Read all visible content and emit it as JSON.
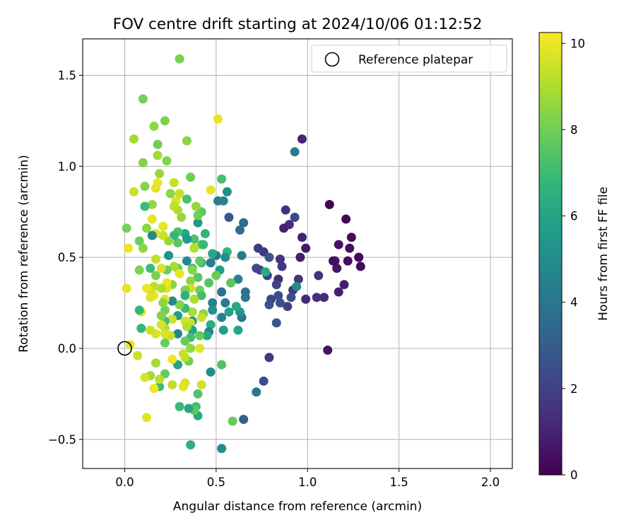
{
  "chart_data": {
    "type": "scatter",
    "title": "FOV centre drift starting at 2024/10/06 01:12:52",
    "xlabel": "Angular distance from reference (arcmin)",
    "ylabel": "Rotation from reference (arcmin)",
    "xlim": [
      -0.23,
      2.12
    ],
    "ylim": [
      -0.66,
      1.7
    ],
    "x_ticks": [
      0.0,
      0.5,
      1.0,
      1.5,
      2.0
    ],
    "x_tick_labels": [
      "0.0",
      "0.5",
      "1.0",
      "1.5",
      "2.0"
    ],
    "y_ticks": [
      -0.5,
      0.0,
      0.5,
      1.0,
      1.5
    ],
    "y_tick_labels": [
      "−0.5",
      "0.0",
      "0.5",
      "1.0",
      "1.5"
    ],
    "grid": true,
    "legend_position": "top-right",
    "legend_label": "Reference platepar",
    "reference_point": {
      "x": 0.0,
      "y": 0.0
    },
    "colorbar": {
      "label": "Hours from first FF file",
      "range": [
        0,
        10.25
      ],
      "ticks": [
        0,
        2,
        4,
        6,
        8,
        10
      ],
      "tick_labels": [
        "0",
        "2",
        "4",
        "6",
        "8",
        "10"
      ],
      "colormap": "viridis"
    },
    "colormap_stops": [
      "#440154",
      "#482878",
      "#3e4a89",
      "#31688e",
      "#26828e",
      "#1f9e89",
      "#35b779",
      "#6ece58",
      "#b5de2b",
      "#fde725"
    ],
    "points": [
      [
        1.12,
        0.79,
        0.1
      ],
      [
        1.21,
        0.71,
        0.2
      ],
      [
        1.24,
        0.61,
        0.3
      ],
      [
        1.28,
        0.5,
        0.2
      ],
      [
        1.29,
        0.45,
        0.3
      ],
      [
        1.23,
        0.55,
        0.4
      ],
      [
        1.22,
        0.48,
        0.3
      ],
      [
        1.17,
        0.57,
        0.5
      ],
      [
        1.15,
        0.48,
        0.6
      ],
      [
        1.16,
        0.44,
        0.6
      ],
      [
        1.2,
        0.35,
        0.8
      ],
      [
        1.17,
        0.31,
        0.9
      ],
      [
        1.14,
        0.48,
        0.4
      ],
      [
        1.11,
        -0.01,
        0.5
      ],
      [
        1.09,
        0.28,
        1.2
      ],
      [
        1.05,
        0.28,
        1.4
      ],
      [
        1.06,
        0.4,
        1.5
      ],
      [
        0.99,
        0.27,
        1.1
      ],
      [
        0.99,
        0.55,
        0.7
      ],
      [
        0.97,
        0.61,
        0.9
      ],
      [
        0.96,
        0.5,
        0.8
      ],
      [
        0.97,
        1.15,
        1.0
      ],
      [
        0.9,
        0.68,
        1.3
      ],
      [
        0.87,
        0.66,
        1.0
      ],
      [
        0.88,
        0.76,
        1.4
      ],
      [
        0.93,
        0.72,
        2.2
      ],
      [
        0.95,
        0.38,
        1.6
      ],
      [
        0.92,
        0.32,
        1.7
      ],
      [
        0.89,
        0.23,
        1.9
      ],
      [
        0.91,
        0.28,
        2.5
      ],
      [
        0.86,
        0.45,
        1.7
      ],
      [
        0.85,
        0.49,
        1.5
      ],
      [
        0.84,
        0.38,
        1.3
      ],
      [
        0.83,
        0.35,
        2.0
      ],
      [
        0.84,
        0.29,
        2.4
      ],
      [
        0.85,
        0.25,
        2.5
      ],
      [
        0.83,
        0.14,
        2.8
      ],
      [
        0.8,
        0.27,
        2.1
      ],
      [
        0.79,
        0.24,
        2.6
      ],
      [
        0.78,
        0.4,
        2.0
      ],
      [
        0.76,
        0.53,
        1.6
      ],
      [
        0.73,
        0.55,
        1.8
      ],
      [
        0.72,
        0.44,
        2.3
      ],
      [
        0.74,
        0.43,
        2.1
      ],
      [
        0.79,
        0.5,
        2.8
      ],
      [
        0.76,
        -0.18,
        2.3
      ],
      [
        0.72,
        -0.24,
        4.2
      ],
      [
        0.79,
        -0.05,
        1.6
      ],
      [
        0.93,
        1.08,
        4.4
      ],
      [
        0.94,
        0.34,
        4.8
      ],
      [
        0.77,
        0.42,
        6.3
      ],
      [
        0.65,
        0.69,
        3.6
      ],
      [
        0.63,
        0.65,
        3.6
      ],
      [
        0.64,
        0.51,
        4.3
      ],
      [
        0.62,
        0.38,
        4.5
      ],
      [
        0.66,
        0.31,
        3.9
      ],
      [
        0.66,
        0.28,
        4.1
      ],
      [
        0.64,
        0.17,
        4.0
      ],
      [
        0.63,
        0.2,
        5.4
      ],
      [
        0.62,
        0.1,
        6.0
      ],
      [
        0.61,
        0.23,
        6.1
      ],
      [
        0.65,
        -0.39,
        3.1
      ],
      [
        0.58,
        0.36,
        7.6
      ],
      [
        0.59,
        -0.4,
        7.8
      ],
      [
        0.57,
        0.72,
        2.9
      ],
      [
        0.56,
        0.86,
        5.1
      ],
      [
        0.54,
        0.81,
        4.6
      ],
      [
        0.56,
        0.53,
        6.8
      ],
      [
        0.55,
        0.5,
        5.0
      ],
      [
        0.55,
        0.25,
        4.3
      ],
      [
        0.57,
        0.2,
        5.9
      ],
      [
        0.53,
        0.93,
        7.2
      ],
      [
        0.52,
        0.43,
        5.7
      ],
      [
        0.53,
        0.31,
        3.9
      ],
      [
        0.53,
        0.17,
        4.6
      ],
      [
        0.54,
        0.1,
        5.8
      ],
      [
        0.53,
        -0.09,
        7.4
      ],
      [
        0.53,
        -0.55,
        4.9
      ],
      [
        0.51,
        1.26,
        9.9
      ],
      [
        0.51,
        0.81,
        4.4
      ],
      [
        0.5,
        0.4,
        7.9
      ],
      [
        0.5,
        0.51,
        3.8
      ],
      [
        0.48,
        0.52,
        6.0
      ],
      [
        0.47,
        0.47,
        4.4
      ],
      [
        0.46,
        0.36,
        7.5
      ],
      [
        0.47,
        0.87,
        9.9
      ],
      [
        0.48,
        0.25,
        4.5
      ],
      [
        0.48,
        0.21,
        5.3
      ],
      [
        0.47,
        0.13,
        6.4
      ],
      [
        0.46,
        0.09,
        4.6
      ],
      [
        0.45,
        0.07,
        6.2
      ],
      [
        0.47,
        -0.13,
        5.1
      ],
      [
        0.44,
        0.63,
        6.7
      ],
      [
        0.42,
        0.75,
        7.6
      ],
      [
        0.42,
        0.57,
        7.7
      ],
      [
        0.43,
        0.57,
        6.9
      ],
      [
        0.42,
        0.47,
        6.9
      ],
      [
        0.41,
        0.48,
        7.7
      ],
      [
        0.4,
        0.39,
        7.6
      ],
      [
        0.41,
        0.32,
        8.1
      ],
      [
        0.42,
        0.29,
        7.1
      ],
      [
        0.43,
        0.19,
        8.4
      ],
      [
        0.42,
        0.17,
        9.4
      ],
      [
        0.41,
        0.0,
        9.8
      ],
      [
        0.41,
        0.07,
        7.8
      ],
      [
        0.42,
        -0.2,
        9.5
      ],
      [
        0.4,
        -0.25,
        7.4
      ],
      [
        0.4,
        -0.37,
        6.2
      ],
      [
        0.39,
        -0.32,
        7.2
      ],
      [
        0.38,
        -0.34,
        7.6
      ],
      [
        0.4,
        0.69,
        5.4
      ],
      [
        0.4,
        0.73,
        8.0
      ],
      [
        0.39,
        0.78,
        8.6
      ],
      [
        0.38,
        0.55,
        9.1
      ],
      [
        0.38,
        0.6,
        7.3
      ],
      [
        0.37,
        0.44,
        7.1
      ],
      [
        0.37,
        0.43,
        8.4
      ],
      [
        0.36,
        0.37,
        8.5
      ],
      [
        0.36,
        0.33,
        9.5
      ],
      [
        0.38,
        0.27,
        9.0
      ],
      [
        0.37,
        0.2,
        8.9
      ],
      [
        0.37,
        0.15,
        5.2
      ],
      [
        0.36,
        0.14,
        9.4
      ],
      [
        0.37,
        0.1,
        6.0
      ],
      [
        0.36,
        0.06,
        7.1
      ],
      [
        0.36,
        0.0,
        8.6
      ],
      [
        0.35,
        -0.07,
        8.0
      ],
      [
        0.36,
        -0.53,
        6.5
      ],
      [
        0.35,
        -0.33,
        6.0
      ],
      [
        0.36,
        0.94,
        8.0
      ],
      [
        0.34,
        1.14,
        8.4
      ],
      [
        0.34,
        0.82,
        7.3
      ],
      [
        0.33,
        0.63,
        6.1
      ],
      [
        0.34,
        0.6,
        5.6
      ],
      [
        0.34,
        0.48,
        4.8
      ],
      [
        0.33,
        0.32,
        8.2
      ],
      [
        0.33,
        0.29,
        6.5
      ],
      [
        0.33,
        0.22,
        7.0
      ],
      [
        0.33,
        0.15,
        9.6
      ],
      [
        0.34,
        0.12,
        9.1
      ],
      [
        0.33,
        0.04,
        7.8
      ],
      [
        0.33,
        -0.05,
        9.2
      ],
      [
        0.33,
        -0.19,
        9.6
      ],
      [
        0.32,
        -0.21,
        9.8
      ],
      [
        0.32,
        -0.03,
        9.4
      ],
      [
        0.31,
        0.72,
        8.6
      ],
      [
        0.3,
        0.85,
        9.4
      ],
      [
        0.29,
        0.76,
        9.0
      ],
      [
        0.29,
        0.64,
        7.3
      ],
      [
        0.29,
        0.58,
        7.6
      ],
      [
        0.29,
        0.44,
        7.9
      ],
      [
        0.3,
        0.41,
        9.9
      ],
      [
        0.3,
        0.24,
        8.3
      ],
      [
        0.29,
        0.18,
        5.7
      ],
      [
        0.29,
        0.08,
        4.7
      ],
      [
        0.29,
        -0.09,
        6.0
      ],
      [
        0.3,
        -0.32,
        6.9
      ],
      [
        0.3,
        1.59,
        8.1
      ],
      [
        0.28,
        0.81,
        9.7
      ],
      [
        0.27,
        0.91,
        9.4
      ],
      [
        0.27,
        0.78,
        9.2
      ],
      [
        0.27,
        0.62,
        6.7
      ],
      [
        0.27,
        0.45,
        8.9
      ],
      [
        0.26,
        0.35,
        8.4
      ],
      [
        0.26,
        0.26,
        4.8
      ],
      [
        0.26,
        0.16,
        9.5
      ],
      [
        0.25,
        0.07,
        9.4
      ],
      [
        0.26,
        -0.06,
        10.0
      ],
      [
        0.26,
        -0.2,
        9.3
      ],
      [
        0.25,
        0.85,
        8.5
      ],
      [
        0.24,
        0.59,
        8.6
      ],
      [
        0.24,
        0.51,
        5.3
      ],
      [
        0.23,
        0.43,
        7.9
      ],
      [
        0.23,
        0.36,
        10.0
      ],
      [
        0.23,
        0.33,
        9.8
      ],
      [
        0.22,
        0.27,
        9.9
      ],
      [
        0.22,
        0.21,
        8.0
      ],
      [
        0.22,
        0.15,
        7.2
      ],
      [
        0.22,
        0.11,
        9.0
      ],
      [
        0.22,
        0.08,
        9.7
      ],
      [
        0.22,
        0.03,
        7.9
      ],
      [
        0.22,
        -0.14,
        7.8
      ],
      [
        0.22,
        1.25,
        8.2
      ],
      [
        0.23,
        1.03,
        8.3
      ],
      [
        0.21,
        0.67,
        9.9
      ],
      [
        0.21,
        0.62,
        9.4
      ],
      [
        0.2,
        0.44,
        9.7
      ],
      [
        0.2,
        0.33,
        9.0
      ],
      [
        0.21,
        0.25,
        8.4
      ],
      [
        0.2,
        0.18,
        8.3
      ],
      [
        0.2,
        0.13,
        9.7
      ],
      [
        0.19,
        -0.21,
        7.0
      ],
      [
        0.19,
        -0.17,
        9.2
      ],
      [
        0.19,
        0.96,
        8.7
      ],
      [
        0.18,
        1.06,
        8.8
      ],
      [
        0.18,
        1.12,
        8.0
      ],
      [
        0.18,
        0.91,
        10.0
      ],
      [
        0.17,
        0.88,
        9.9
      ],
      [
        0.17,
        0.63,
        9.8
      ],
      [
        0.17,
        0.49,
        9.3
      ],
      [
        0.17,
        0.4,
        8.2
      ],
      [
        0.16,
        0.34,
        9.2
      ],
      [
        0.16,
        0.29,
        10.0
      ],
      [
        0.17,
        0.08,
        9.7
      ],
      [
        0.17,
        -0.08,
        8.8
      ],
      [
        0.16,
        -0.22,
        10.0
      ],
      [
        0.16,
        1.22,
        8.5
      ],
      [
        0.15,
        0.79,
        8.6
      ],
      [
        0.15,
        0.71,
        9.9
      ],
      [
        0.15,
        0.62,
        4.9
      ],
      [
        0.14,
        0.44,
        7.0
      ],
      [
        0.14,
        0.32,
        9.4
      ],
      [
        0.14,
        0.28,
        9.8
      ],
      [
        0.14,
        0.1,
        9.5
      ],
      [
        0.14,
        -0.15,
        8.8
      ],
      [
        0.12,
        0.66,
        8.4
      ],
      [
        0.12,
        0.33,
        10.0
      ],
      [
        0.12,
        -0.38,
        9.8
      ],
      [
        0.11,
        0.89,
        8.3
      ],
      [
        0.11,
        0.78,
        7.0
      ],
      [
        0.11,
        -0.16,
        9.7
      ],
      [
        0.1,
        1.02,
        8.3
      ],
      [
        0.1,
        1.37,
        8.1
      ],
      [
        0.1,
        0.55,
        8.5
      ],
      [
        0.09,
        0.2,
        9.9
      ],
      [
        0.09,
        0.11,
        6.8
      ],
      [
        0.08,
        0.59,
        7.9
      ],
      [
        0.08,
        0.43,
        8.2
      ],
      [
        0.08,
        0.21,
        6.8
      ],
      [
        0.07,
        -0.04,
        9.5
      ],
      [
        0.05,
        1.15,
        8.8
      ],
      [
        0.05,
        0.86,
        9.4
      ],
      [
        0.01,
        0.66,
        8.1
      ],
      [
        0.02,
        0.55,
        10.0
      ],
      [
        0.01,
        0.33,
        9.9
      ],
      [
        0.03,
        0.02,
        9.9
      ]
    ]
  }
}
